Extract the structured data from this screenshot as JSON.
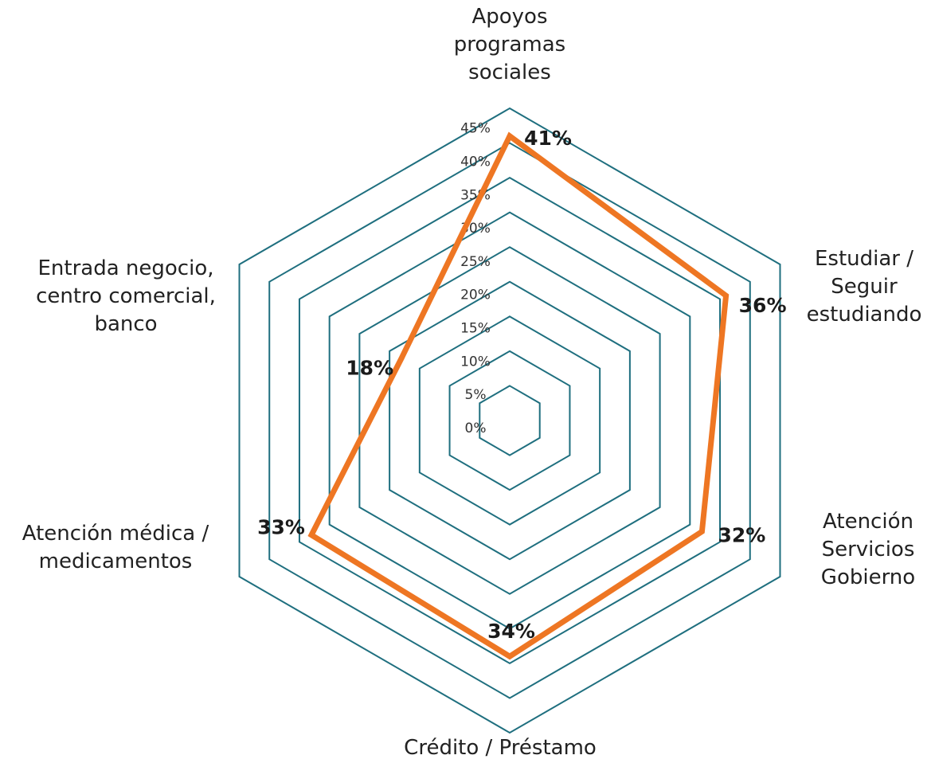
{
  "chart_data": {
    "type": "radar",
    "categories": [
      "Apoyos programas sociales",
      "Estudiar / Seguir estudiando",
      "Atención Servicios Gobierno",
      "Crédito / Préstamo",
      "Atención médica / medicamentos",
      "Entrada negocio, centro comercial, banco"
    ],
    "values": [
      41,
      36,
      32,
      34,
      33,
      18
    ],
    "value_labels": [
      "41%",
      "36%",
      "32%",
      "34%",
      "33%",
      "18%"
    ],
    "color": "#ee7623",
    "grid_color": "#1f6f7f",
    "ylim": [
      0,
      45
    ],
    "yticks": [
      {
        "value": 0,
        "label": "0%"
      },
      {
        "value": 5,
        "label": "5%"
      },
      {
        "value": 10,
        "label": "10%"
      },
      {
        "value": 15,
        "label": "15%"
      },
      {
        "value": 20,
        "label": "20%"
      },
      {
        "value": 25,
        "label": "25%"
      },
      {
        "value": 30,
        "label": "30%"
      },
      {
        "value": 35,
        "label": "35%"
      },
      {
        "value": 40,
        "label": "40%"
      },
      {
        "value": 45,
        "label": "45%"
      }
    ]
  }
}
